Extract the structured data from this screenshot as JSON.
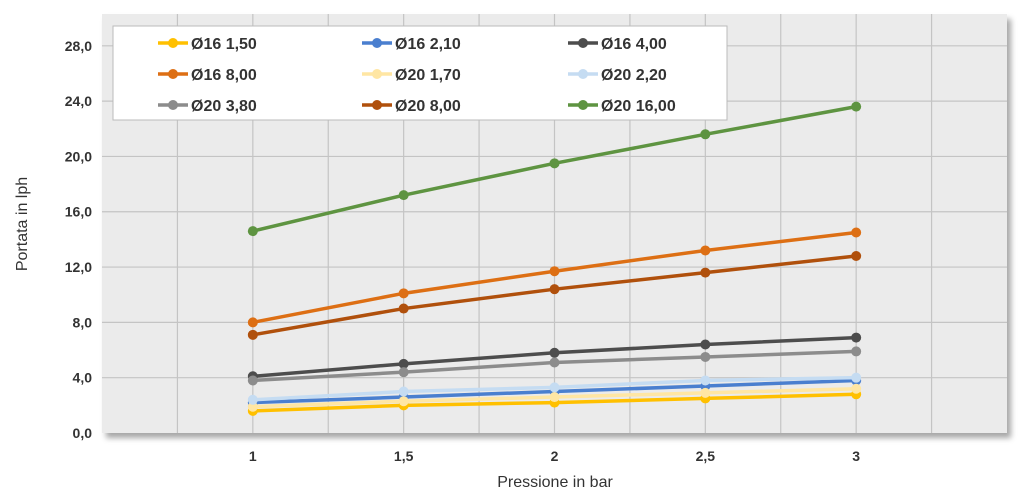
{
  "chart_data": {
    "type": "line",
    "title": "",
    "xlabel": "Pressione in bar",
    "ylabel": "Portata in lph",
    "x": [
      1,
      1.5,
      2,
      2.5,
      3
    ],
    "x_tick_labels": [
      "1",
      "1,5",
      "2",
      "2,5",
      "3"
    ],
    "xlim": [
      0.5,
      3.5
    ],
    "ylim": [
      0,
      30.3
    ],
    "y_ticks": [
      0,
      4,
      8,
      12,
      16,
      20,
      24,
      28
    ],
    "y_tick_labels": [
      "0,0",
      "4,0",
      "8,0",
      "12,0",
      "16,0",
      "20,0",
      "24,0",
      "28,0"
    ],
    "grid": true,
    "legend_placement": "top-left, inside",
    "series": [
      {
        "name": "Ø16   1,50",
        "color": "#ffc000",
        "values": [
          1.6,
          2.0,
          2.2,
          2.5,
          2.8
        ]
      },
      {
        "name": "Ø16   2,10",
        "color": "#4a7fcf",
        "values": [
          2.2,
          2.6,
          3.0,
          3.4,
          3.8
        ]
      },
      {
        "name": "Ø16   4,00",
        "color": "#4d4d4d",
        "values": [
          4.1,
          5.0,
          5.8,
          6.4,
          6.9
        ]
      },
      {
        "name": "Ø16   8,00",
        "color": "#dd6f14",
        "values": [
          8.0,
          10.1,
          11.7,
          13.2,
          14.5
        ]
      },
      {
        "name": "Ø20   1,70",
        "color": "#ffe6a3",
        "values": [
          1.9,
          2.3,
          2.6,
          2.9,
          3.2
        ]
      },
      {
        "name": "Ø20   2,20",
        "color": "#c5dcf2",
        "values": [
          2.4,
          3.0,
          3.3,
          3.8,
          4.0
        ]
      },
      {
        "name": "Ø20   3,80",
        "color": "#8c8c8c",
        "values": [
          3.8,
          4.4,
          5.1,
          5.5,
          5.9
        ]
      },
      {
        "name": "Ø20   8,00",
        "color": "#b0500c",
        "values": [
          7.1,
          9.0,
          10.4,
          11.6,
          12.8
        ]
      },
      {
        "name": "Ø20   16,00",
        "color": "#5e9441",
        "values": [
          14.6,
          17.2,
          19.5,
          21.6,
          23.6
        ]
      }
    ]
  }
}
